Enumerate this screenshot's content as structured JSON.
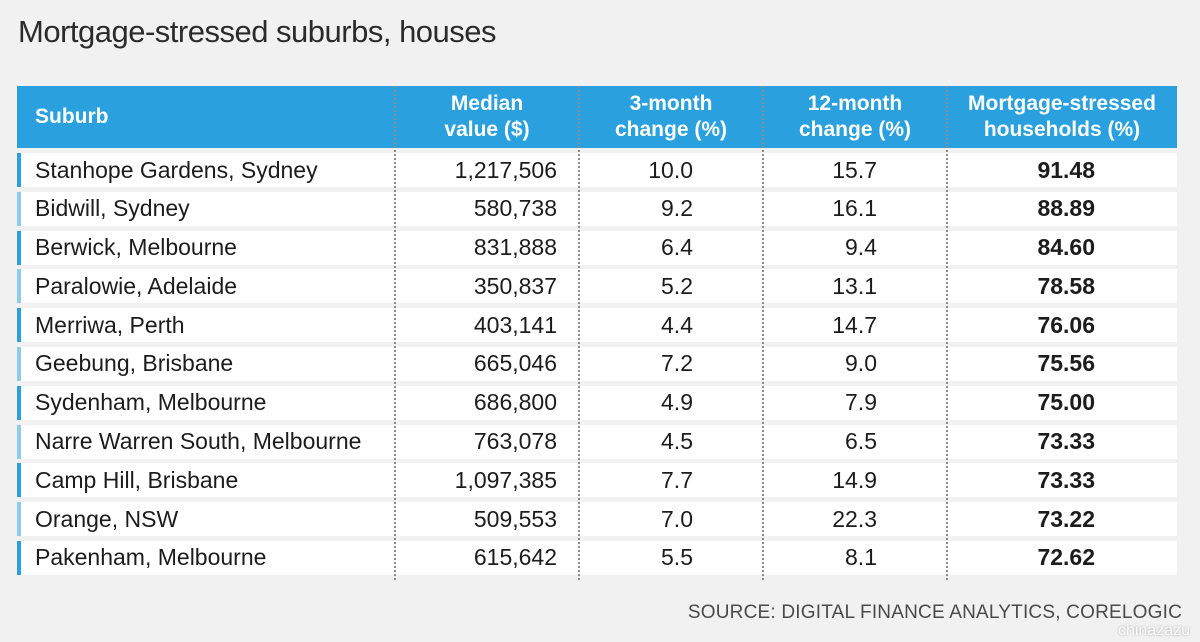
{
  "title": "Mortgage-stressed suburbs, houses",
  "source": "SOURCE: DIGITAL FINANCE ANALYTICS, CORELOGIC",
  "watermark": "chinazazu",
  "colors": {
    "header_bg": "#2aa1de",
    "bar_dark": "#2aa1de",
    "bar_light": "#8fcbea",
    "page_bg": "#f1f1f1"
  },
  "chart_data": {
    "type": "table",
    "title": "Mortgage-stressed suburbs, houses",
    "columns": [
      "Suburb",
      "Median\nvalue ($)",
      "3-month\nchange (%)",
      "12-month\nchange (%)",
      "Mortgage-stressed\nhouseholds (%)"
    ],
    "rows": [
      [
        "Stanhope Gardens, Sydney",
        "1,217,506",
        "10.0",
        "15.7",
        "91.48"
      ],
      [
        "Bidwill, Sydney",
        "580,738",
        "9.2",
        "16.1",
        "88.89"
      ],
      [
        "Berwick, Melbourne",
        "831,888",
        "6.4",
        "9.4",
        "84.60"
      ],
      [
        "Paralowie, Adelaide",
        "350,837",
        "5.2",
        "13.1",
        "78.58"
      ],
      [
        "Merriwa, Perth",
        "403,141",
        "4.4",
        "14.7",
        "76.06"
      ],
      [
        "Geebung, Brisbane",
        "665,046",
        "7.2",
        "9.0",
        "75.56"
      ],
      [
        "Sydenham, Melbourne",
        "686,800",
        "4.9",
        "7.9",
        "75.00"
      ],
      [
        "Narre Warren South, Melbourne",
        "763,078",
        "4.5",
        "6.5",
        "73.33"
      ],
      [
        "Camp Hill, Brisbane",
        "1,097,385",
        "7.7",
        "14.9",
        "73.33"
      ],
      [
        "Orange, NSW",
        "509,553",
        "7.0",
        "22.3",
        "73.22"
      ],
      [
        "Pakenham, Melbourne",
        "615,642",
        "5.5",
        "8.1",
        "72.62"
      ]
    ]
  }
}
